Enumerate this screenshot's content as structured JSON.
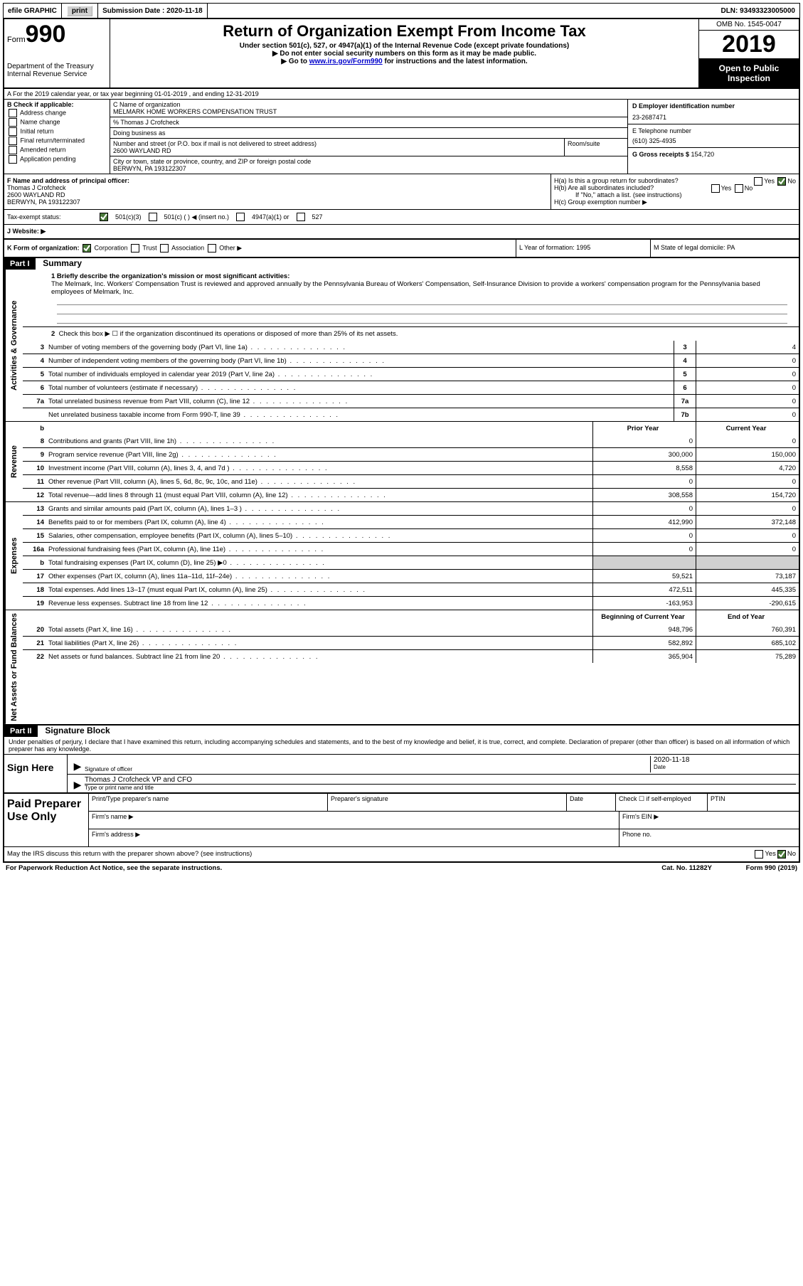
{
  "topbar": {
    "efile": "efile GRAPHIC",
    "print": "print",
    "submission": "Submission Date : 2020-11-18",
    "dln": "DLN: 93493323005000"
  },
  "header": {
    "form_prefix": "Form",
    "form_num": "990",
    "dept": "Department of the Treasury Internal Revenue Service",
    "title": "Return of Organization Exempt From Income Tax",
    "sub1": "Under section 501(c), 527, or 4947(a)(1) of the Internal Revenue Code (except private foundations)",
    "sub2": "Do not enter social security numbers on this form as it may be made public.",
    "sub3_pre": "Go to ",
    "sub3_link": "www.irs.gov/Form990",
    "sub3_post": " for instructions and the latest information.",
    "omb": "OMB No. 1545-0047",
    "year": "2019",
    "inspection": "Open to Public Inspection"
  },
  "row_a": "A For the 2019 calendar year, or tax year beginning 01-01-2019    , and ending 12-31-2019",
  "col_b": {
    "title": "B Check if applicable:",
    "opts": [
      "Address change",
      "Name change",
      "Initial return",
      "Final return/terminated",
      "Amended return",
      "Application pending"
    ]
  },
  "col_c": {
    "name_label": "C Name of organization",
    "name": "MELMARK HOME WORKERS COMPENSATION TRUST",
    "care_of": "% Thomas J Crofcheck",
    "dba_label": "Doing business as",
    "street_label": "Number and street (or P.O. box if mail is not delivered to street address)",
    "street": "2600 WAYLAND RD",
    "suite_label": "Room/suite",
    "city_label": "City or town, state or province, country, and ZIP or foreign postal code",
    "city": "BERWYN, PA  193122307"
  },
  "col_d": {
    "ein_label": "D Employer identification number",
    "ein": "23-2687471",
    "phone_label": "E Telephone number",
    "phone": "(610) 325-4935",
    "gross_label": "G Gross receipts $ ",
    "gross": "154,720"
  },
  "col_f": {
    "label": "F  Name and address of principal officer:",
    "name": "Thomas J Crofcheck",
    "addr1": "2600 WAYLAND RD",
    "addr2": "BERWYN, PA  193122307"
  },
  "col_h": {
    "ha": "H(a)  Is this a group return for subordinates?",
    "hb": "H(b)  Are all subordinates included?",
    "hb_note": "If \"No,\" attach a list. (see instructions)",
    "hc": "H(c)  Group exemption number ▶"
  },
  "tax_status": {
    "label": "Tax-exempt status:",
    "o1": "501(c)(3)",
    "o2": "501(c) (  ) ◀ (insert no.)",
    "o3": "4947(a)(1) or",
    "o4": "527"
  },
  "website": "J   Website: ▶",
  "k_row": {
    "k": "K Form of organization:",
    "corp": "Corporation",
    "trust": "Trust",
    "assoc": "Association",
    "other": "Other ▶",
    "l": "L Year of formation: 1995",
    "m": "M State of legal domicile: PA"
  },
  "part1": {
    "header": "Part I",
    "title": "Summary",
    "l1_label": "1  Briefly describe the organization's mission or most significant activities:",
    "l1_text": "The Melmark, Inc. Workers' Compensation Trust is reviewed and approved annually by the Pennsylvania Bureau of Workers' Compensation, Self-Insurance Division to provide a workers' compensation program for the Pennsylvania based employees of Melmark, Inc.",
    "l2": "Check this box ▶ ☐  if the organization discontinued its operations or disposed of more than 25% of its net assets.",
    "lines_gov": [
      {
        "n": "3",
        "d": "Number of voting members of the governing body (Part VI, line 1a)",
        "box": "3",
        "v": "4"
      },
      {
        "n": "4",
        "d": "Number of independent voting members of the governing body (Part VI, line 1b)",
        "box": "4",
        "v": "0"
      },
      {
        "n": "5",
        "d": "Total number of individuals employed in calendar year 2019 (Part V, line 2a)",
        "box": "5",
        "v": "0"
      },
      {
        "n": "6",
        "d": "Total number of volunteers (estimate if necessary)",
        "box": "6",
        "v": "0"
      },
      {
        "n": "7a",
        "d": "Total unrelated business revenue from Part VIII, column (C), line 12",
        "box": "7a",
        "v": "0"
      },
      {
        "n": "",
        "d": "Net unrelated business taxable income from Form 990-T, line 39",
        "box": "7b",
        "v": "0"
      }
    ],
    "col_headers": {
      "prior": "Prior Year",
      "current": "Current Year"
    },
    "lines_rev": [
      {
        "n": "8",
        "d": "Contributions and grants (Part VIII, line 1h)",
        "p": "0",
        "c": "0"
      },
      {
        "n": "9",
        "d": "Program service revenue (Part VIII, line 2g)",
        "p": "300,000",
        "c": "150,000"
      },
      {
        "n": "10",
        "d": "Investment income (Part VIII, column (A), lines 3, 4, and 7d )",
        "p": "8,558",
        "c": "4,720"
      },
      {
        "n": "11",
        "d": "Other revenue (Part VIII, column (A), lines 5, 6d, 8c, 9c, 10c, and 11e)",
        "p": "0",
        "c": "0"
      },
      {
        "n": "12",
        "d": "Total revenue—add lines 8 through 11 (must equal Part VIII, column (A), line 12)",
        "p": "308,558",
        "c": "154,720"
      }
    ],
    "lines_exp": [
      {
        "n": "13",
        "d": "Grants and similar amounts paid (Part IX, column (A), lines 1–3 )",
        "p": "0",
        "c": "0"
      },
      {
        "n": "14",
        "d": "Benefits paid to or for members (Part IX, column (A), line 4)",
        "p": "412,990",
        "c": "372,148"
      },
      {
        "n": "15",
        "d": "Salaries, other compensation, employee benefits (Part IX, column (A), lines 5–10)",
        "p": "0",
        "c": "0"
      },
      {
        "n": "16a",
        "d": "Professional fundraising fees (Part IX, column (A), line 11e)",
        "p": "0",
        "c": "0"
      },
      {
        "n": "b",
        "d": "Total fundraising expenses (Part IX, column (D), line 25) ▶0",
        "p": "",
        "c": "",
        "grey": true
      },
      {
        "n": "17",
        "d": "Other expenses (Part IX, column (A), lines 11a–11d, 11f–24e)",
        "p": "59,521",
        "c": "73,187"
      },
      {
        "n": "18",
        "d": "Total expenses. Add lines 13–17 (must equal Part IX, column (A), line 25)",
        "p": "472,511",
        "c": "445,335"
      },
      {
        "n": "19",
        "d": "Revenue less expenses. Subtract line 18 from line 12",
        "p": "-163,953",
        "c": "-290,615"
      }
    ],
    "net_headers": {
      "beg": "Beginning of Current Year",
      "end": "End of Year"
    },
    "lines_net": [
      {
        "n": "20",
        "d": "Total assets (Part X, line 16)",
        "p": "948,796",
        "c": "760,391"
      },
      {
        "n": "21",
        "d": "Total liabilities (Part X, line 26)",
        "p": "582,892",
        "c": "685,102"
      },
      {
        "n": "22",
        "d": "Net assets or fund balances. Subtract line 21 from line 20",
        "p": "365,904",
        "c": "75,289"
      }
    ]
  },
  "part2": {
    "header": "Part II",
    "title": "Signature Block",
    "penalty": "Under penalties of perjury, I declare that I have examined this return, including accompanying schedules and statements, and to the best of my knowledge and belief, it is true, correct, and complete. Declaration of preparer (other than officer) is based on all information of which preparer has any knowledge.",
    "sign_here": "Sign Here",
    "sig_officer": "Signature of officer",
    "sig_date": "2020-11-18",
    "date_label": "Date",
    "typed_name": "Thomas J Crofcheck VP and CFO",
    "typed_label": "Type or print name and title",
    "paid_prep": "Paid Preparer Use Only",
    "pt_name": "Print/Type preparer's name",
    "pt_sig": "Preparer's signature",
    "pt_date": "Date",
    "pt_check": "Check ☐ if self-employed",
    "ptin": "PTIN",
    "firm_name": "Firm's name  ▶",
    "firm_ein": "Firm's EIN ▶",
    "firm_addr": "Firm's address ▶",
    "firm_phone": "Phone no.",
    "may_irs": "May the IRS discuss this return with the preparer shown above? (see instructions)"
  },
  "footer": {
    "paperwork": "For Paperwork Reduction Act Notice, see the separate instructions.",
    "cat": "Cat. No. 11282Y",
    "form": "Form 990 (2019)"
  },
  "vlabels": {
    "gov": "Activities & Governance",
    "rev": "Revenue",
    "exp": "Expenses",
    "net": "Net Assets or Fund Balances"
  }
}
